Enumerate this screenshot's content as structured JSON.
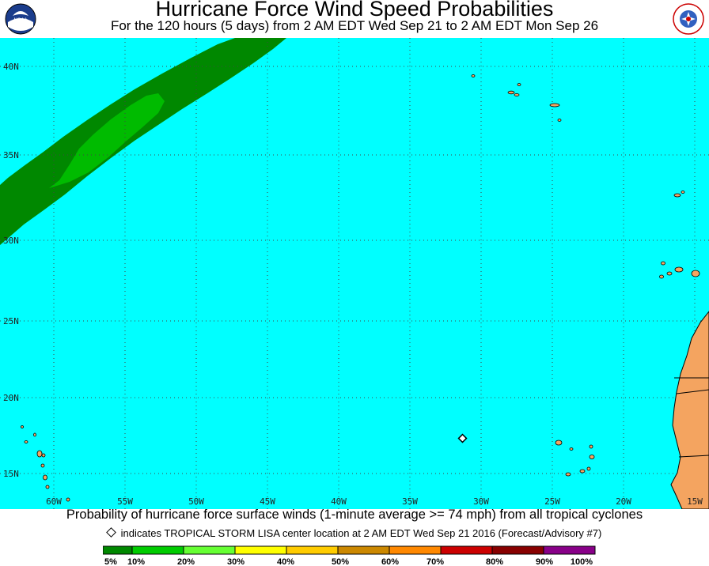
{
  "header": {
    "title": "Hurricane Force Wind Speed Probabilities",
    "subtitle": "For the 120 hours (5 days) from 2 AM EDT Wed Sep 21 to 2 AM EDT Mon Sep 26"
  },
  "logos": {
    "left": "NOAA",
    "right": "NATIONAL WEATHER SERVICE"
  },
  "map": {
    "ocean_color": "#00ffff",
    "land_color": "#f4a460",
    "lat_labels": [
      "40N",
      "35N",
      "30N",
      "25N",
      "20N",
      "15N"
    ],
    "lon_labels": [
      "60W",
      "55W",
      "50W",
      "45W",
      "40W",
      "35W",
      "30W",
      "25W",
      "20W",
      "15W"
    ],
    "storm_marker": {
      "name": "TROPICAL STORM LISA",
      "lat": 17.3,
      "lon": -31.3
    }
  },
  "footer": {
    "caption": "Probability of hurricane force surface winds (1-minute average >= 74 mph) from all tropical cyclones",
    "note": "indicates TROPICAL STORM LISA center location at 2 AM EDT Wed Sep 21 2016 (Forecast/Advisory #7)"
  },
  "legend": {
    "colors": [
      "#008800",
      "#00cc00",
      "#66ff33",
      "#ffff00",
      "#ffcc00",
      "#cc8800",
      "#ff8800",
      "#cc0000",
      "#880000",
      "#880088"
    ],
    "labels": [
      "5%",
      "10%",
      "20%",
      "30%",
      "40%",
      "50%",
      "60%",
      "70%",
      "80%",
      "90%",
      "100%"
    ]
  }
}
